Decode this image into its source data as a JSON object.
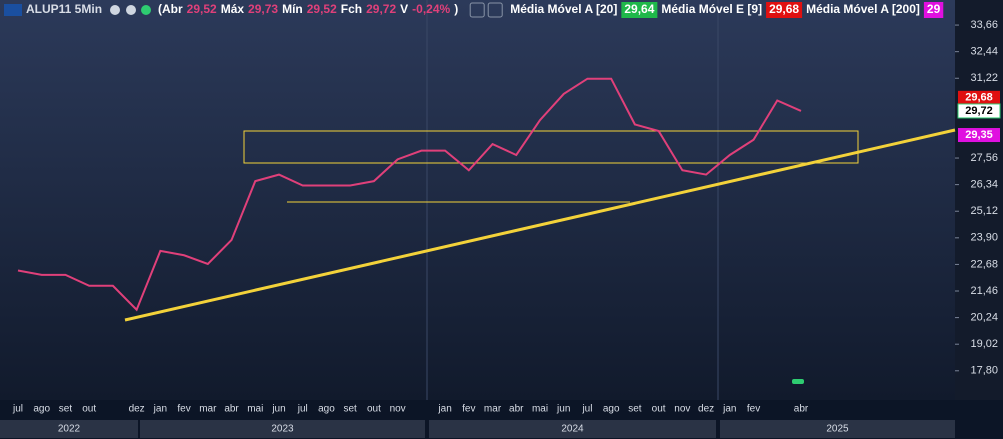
{
  "header": {
    "ticker": "ALUP11 5Min",
    "open_label": "(Abr",
    "open": "29,52",
    "high_label": "Máx",
    "high": "29,73",
    "low_label": "Mín",
    "low": "29,52",
    "close_label": "Fch",
    "close": "29,72",
    "var_label": "V",
    "var": "-0,24%",
    "close_paren": ")",
    "indicators": [
      {
        "name": "Média Móvel A [20]",
        "value": "29,64",
        "color": "#1fb84a"
      },
      {
        "name": "Média Móvel E [9]",
        "value": "29,68",
        "color": "#e01010"
      },
      {
        "name": "Média Móvel A [200]",
        "value": "29",
        "color": "#e010e0"
      }
    ]
  },
  "chart_data": {
    "type": "line",
    "categories": [
      "jul",
      "ago",
      "set",
      "out",
      null,
      "dez",
      "jan",
      "fev",
      "mar",
      "abr",
      "mai",
      "jun",
      "jul",
      "ago",
      "set",
      "out",
      "nov",
      null,
      "jan",
      "fev",
      "mar",
      "abr",
      "mai",
      "jun",
      "jul",
      "ago",
      "set",
      "out",
      "nov",
      "dez",
      "jan",
      "fev",
      null,
      "abr"
    ],
    "years": [
      "2022",
      "2023",
      "2024",
      "2025"
    ],
    "series": [
      {
        "name": "ALUP11",
        "color": "#e0407a",
        "values": [
          22.4,
          22.2,
          22.2,
          21.7,
          21.7,
          20.6,
          23.3,
          23.1,
          22.7,
          23.8,
          26.5,
          26.8,
          26.3,
          26.3,
          26.3,
          26.5,
          27.5,
          27.9,
          27.9,
          27.0,
          28.2,
          27.7,
          29.3,
          30.5,
          31.2,
          31.2,
          29.1,
          28.8,
          27.0,
          26.8,
          27.7,
          28.4,
          30.2,
          29.72
        ]
      }
    ],
    "ylim": [
      16.46,
      34.81
    ],
    "yticks": [
      {
        "value": 33.66,
        "label": "33,66"
      },
      {
        "value": 32.44,
        "label": "32,44"
      },
      {
        "value": 31.22,
        "label": "31,22"
      },
      {
        "value": 27.56,
        "label": "27,56"
      },
      {
        "value": 26.34,
        "label": "26,34"
      },
      {
        "value": 25.12,
        "label": "25,12"
      },
      {
        "value": 23.9,
        "label": "23,90"
      },
      {
        "value": 22.68,
        "label": "22,68"
      },
      {
        "value": 21.46,
        "label": "21,46"
      },
      {
        "value": 20.24,
        "label": "20,24"
      },
      {
        "value": 19.02,
        "label": "19,02"
      },
      {
        "value": 17.8,
        "label": "17,80"
      }
    ],
    "price_labels": [
      {
        "value": 29.68,
        "label": "29,68",
        "color": "#e01010"
      },
      {
        "value": 29.72,
        "label": "29,72",
        "color": "#ffffff"
      },
      {
        "value": 29.35,
        "label": "29,35",
        "color": "#e010e0"
      }
    ]
  }
}
